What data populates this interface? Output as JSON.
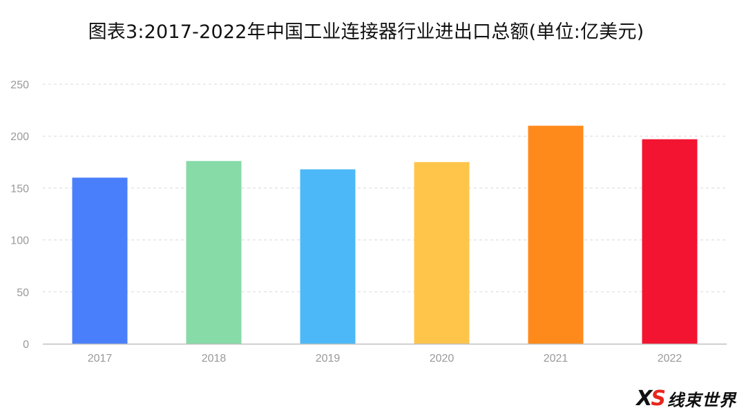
{
  "chart_data": {
    "type": "bar",
    "title": "图表3:2017-2022年中国工业连接器行业进出口总额(单位:亿美元)",
    "xlabel": "",
    "ylabel": "",
    "categories": [
      "2017",
      "2018",
      "2019",
      "2020",
      "2021",
      "2022"
    ],
    "values": [
      160,
      176,
      168,
      175,
      210,
      197
    ],
    "ylim": [
      0,
      250
    ],
    "yticks": [
      0,
      50,
      100,
      150,
      200,
      250
    ],
    "grid": true,
    "legend": "none",
    "colors": [
      "#4A7FFB",
      "#86DBA7",
      "#4DB8F7",
      "#FFC54B",
      "#FF8A1C",
      "#F21431"
    ]
  },
  "watermark": {
    "mark": "XS",
    "text": "线束世界"
  }
}
